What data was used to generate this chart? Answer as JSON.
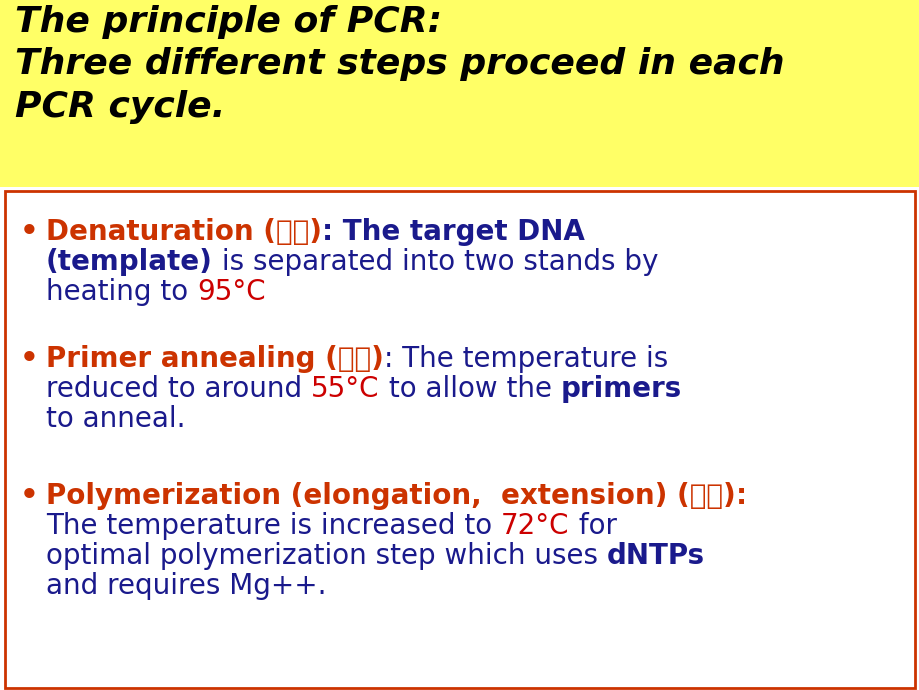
{
  "title_line1": "The principle of PCR:",
  "title_line2": "Three different steps proceed in each",
  "title_line3": "PCR cycle.",
  "title_bg": "#FFFF66",
  "title_color": "#000000",
  "content_bg": "#FFFFFF",
  "content_border": "#CC3300",
  "orange_color": "#CC3300",
  "red_color": "#CC0000",
  "navy_color": "#1A1A8C",
  "fig_w": 9.2,
  "fig_h": 6.9,
  "dpi": 100
}
